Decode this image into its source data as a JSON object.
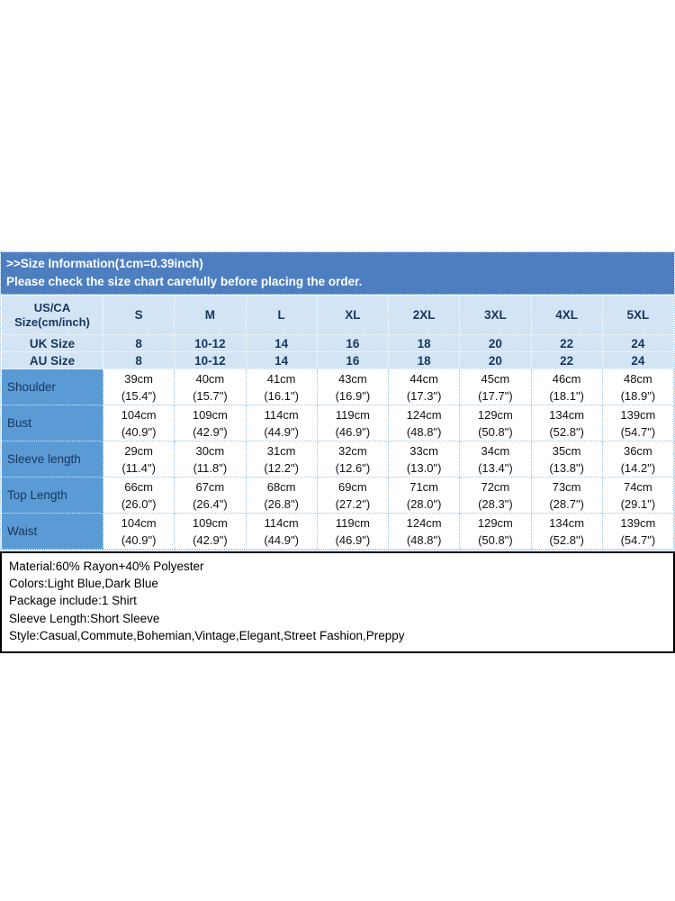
{
  "banner": {
    "line1": ">>Size Information(1cm=0.39inch)",
    "line2": "Please check the size chart carefully before placing the order."
  },
  "table": {
    "corner": {
      "line1": "US/CA",
      "line2": "Size(cm/inch)"
    },
    "sizes": [
      "S",
      "M",
      "L",
      "XL",
      "2XL",
      "3XL",
      "4XL",
      "5XL"
    ],
    "size_rows": [
      {
        "label": "UK Size",
        "values": [
          "8",
          "10-12",
          "14",
          "16",
          "18",
          "20",
          "22",
          "24"
        ]
      },
      {
        "label": "AU Size",
        "values": [
          "8",
          "10-12",
          "14",
          "16",
          "18",
          "20",
          "22",
          "24"
        ]
      }
    ],
    "measurement_rows": [
      {
        "label": "Shoulder",
        "cm": [
          "39cm",
          "40cm",
          "41cm",
          "43cm",
          "44cm",
          "45cm",
          "46cm",
          "48cm"
        ],
        "inch": [
          "(15.4\")",
          "(15.7\")",
          "(16.1\")",
          "(16.9\")",
          "(17.3\")",
          "(17.7\")",
          "(18.1\")",
          "(18.9\")"
        ]
      },
      {
        "label": "Bust",
        "cm": [
          "104cm",
          "109cm",
          "114cm",
          "119cm",
          "124cm",
          "129cm",
          "134cm",
          "139cm"
        ],
        "inch": [
          "(40.9\")",
          "(42.9\")",
          "(44.9\")",
          "(46.9\")",
          "(48.8\")",
          "(50.8\")",
          "(52.8\")",
          "(54.7\")"
        ]
      },
      {
        "label": "Sleeve length",
        "cm": [
          "29cm",
          "30cm",
          "31cm",
          "32cm",
          "33cm",
          "34cm",
          "35cm",
          "36cm"
        ],
        "inch": [
          "(11.4\")",
          "(11.8\")",
          "(12.2\")",
          "(12.6\")",
          "(13.0\")",
          "(13.4\")",
          "(13.8\")",
          "(14.2\")"
        ]
      },
      {
        "label": "Top Length",
        "cm": [
          "66cm",
          "67cm",
          "68cm",
          "69cm",
          "71cm",
          "72cm",
          "73cm",
          "74cm"
        ],
        "inch": [
          "(26.0\")",
          "(26.4\")",
          "(26.8\")",
          "(27.2\")",
          "(28.0\")",
          "(28.3\")",
          "(28.7\")",
          "(29.1\")"
        ]
      },
      {
        "label": "Waist",
        "cm": [
          "104cm",
          "109cm",
          "114cm",
          "119cm",
          "124cm",
          "129cm",
          "134cm",
          "139cm"
        ],
        "inch": [
          "(40.9\")",
          "(42.9\")",
          "(44.9\")",
          "(46.9\")",
          "(48.8\")",
          "(50.8\")",
          "(52.8\")",
          "(54.7\")"
        ]
      }
    ]
  },
  "details": {
    "lines": [
      "Material:60% Rayon+40% Polyester",
      "Colors:Light Blue,Dark Blue",
      "Package include:1 Shirt",
      "Sleeve Length:Short Sleeve",
      "Style:Casual,Commute,Bohemian,Vintage,Elegant,Street Fashion,Preppy"
    ]
  },
  "colors": {
    "banner_bg": "#4d7fc0",
    "header_bg": "#d3e5f4",
    "label_column_bg": "#5b9bd5",
    "header_text": "#17365d",
    "body_text": "#121212",
    "grid_line": "#9dc3e6",
    "details_border": "#000000"
  },
  "chart_data": {
    "type": "table",
    "title": ">>Size Information(1cm=0.39inch)",
    "columns": [
      "US/CA Size(cm/inch)",
      "S",
      "M",
      "L",
      "XL",
      "2XL",
      "3XL",
      "4XL",
      "5XL"
    ],
    "rows": [
      [
        "UK Size",
        "8",
        "10-12",
        "14",
        "16",
        "18",
        "20",
        "22",
        "24"
      ],
      [
        "AU Size",
        "8",
        "10-12",
        "14",
        "16",
        "18",
        "20",
        "22",
        "24"
      ],
      [
        "Shoulder",
        "39cm (15.4\")",
        "40cm (15.7\")",
        "41cm (16.1\")",
        "43cm (16.9\")",
        "44cm (17.3\")",
        "45cm (17.7\")",
        "46cm (18.1\")",
        "48cm (18.9\")"
      ],
      [
        "Bust",
        "104cm (40.9\")",
        "109cm (42.9\")",
        "114cm (44.9\")",
        "119cm (46.9\")",
        "124cm (48.8\")",
        "129cm (50.8\")",
        "134cm (52.8\")",
        "139cm (54.7\")"
      ],
      [
        "Sleeve length",
        "29cm (11.4\")",
        "30cm (11.8\")",
        "31cm (12.2\")",
        "32cm (12.6\")",
        "33cm (13.0\")",
        "34cm (13.4\")",
        "35cm (13.8\")",
        "36cm (14.2\")"
      ],
      [
        "Top Length",
        "66cm (26.0\")",
        "67cm (26.4\")",
        "68cm (26.8\")",
        "69cm (27.2\")",
        "71cm (28.0\")",
        "72cm (28.3\")",
        "73cm (28.7\")",
        "74cm (29.1\")"
      ],
      [
        "Waist",
        "104cm (40.9\")",
        "109cm (42.9\")",
        "114cm (44.9\")",
        "119cm (46.9\")",
        "124cm (48.8\")",
        "129cm (50.8\")",
        "134cm (52.8\")",
        "139cm (54.7\")"
      ]
    ]
  }
}
